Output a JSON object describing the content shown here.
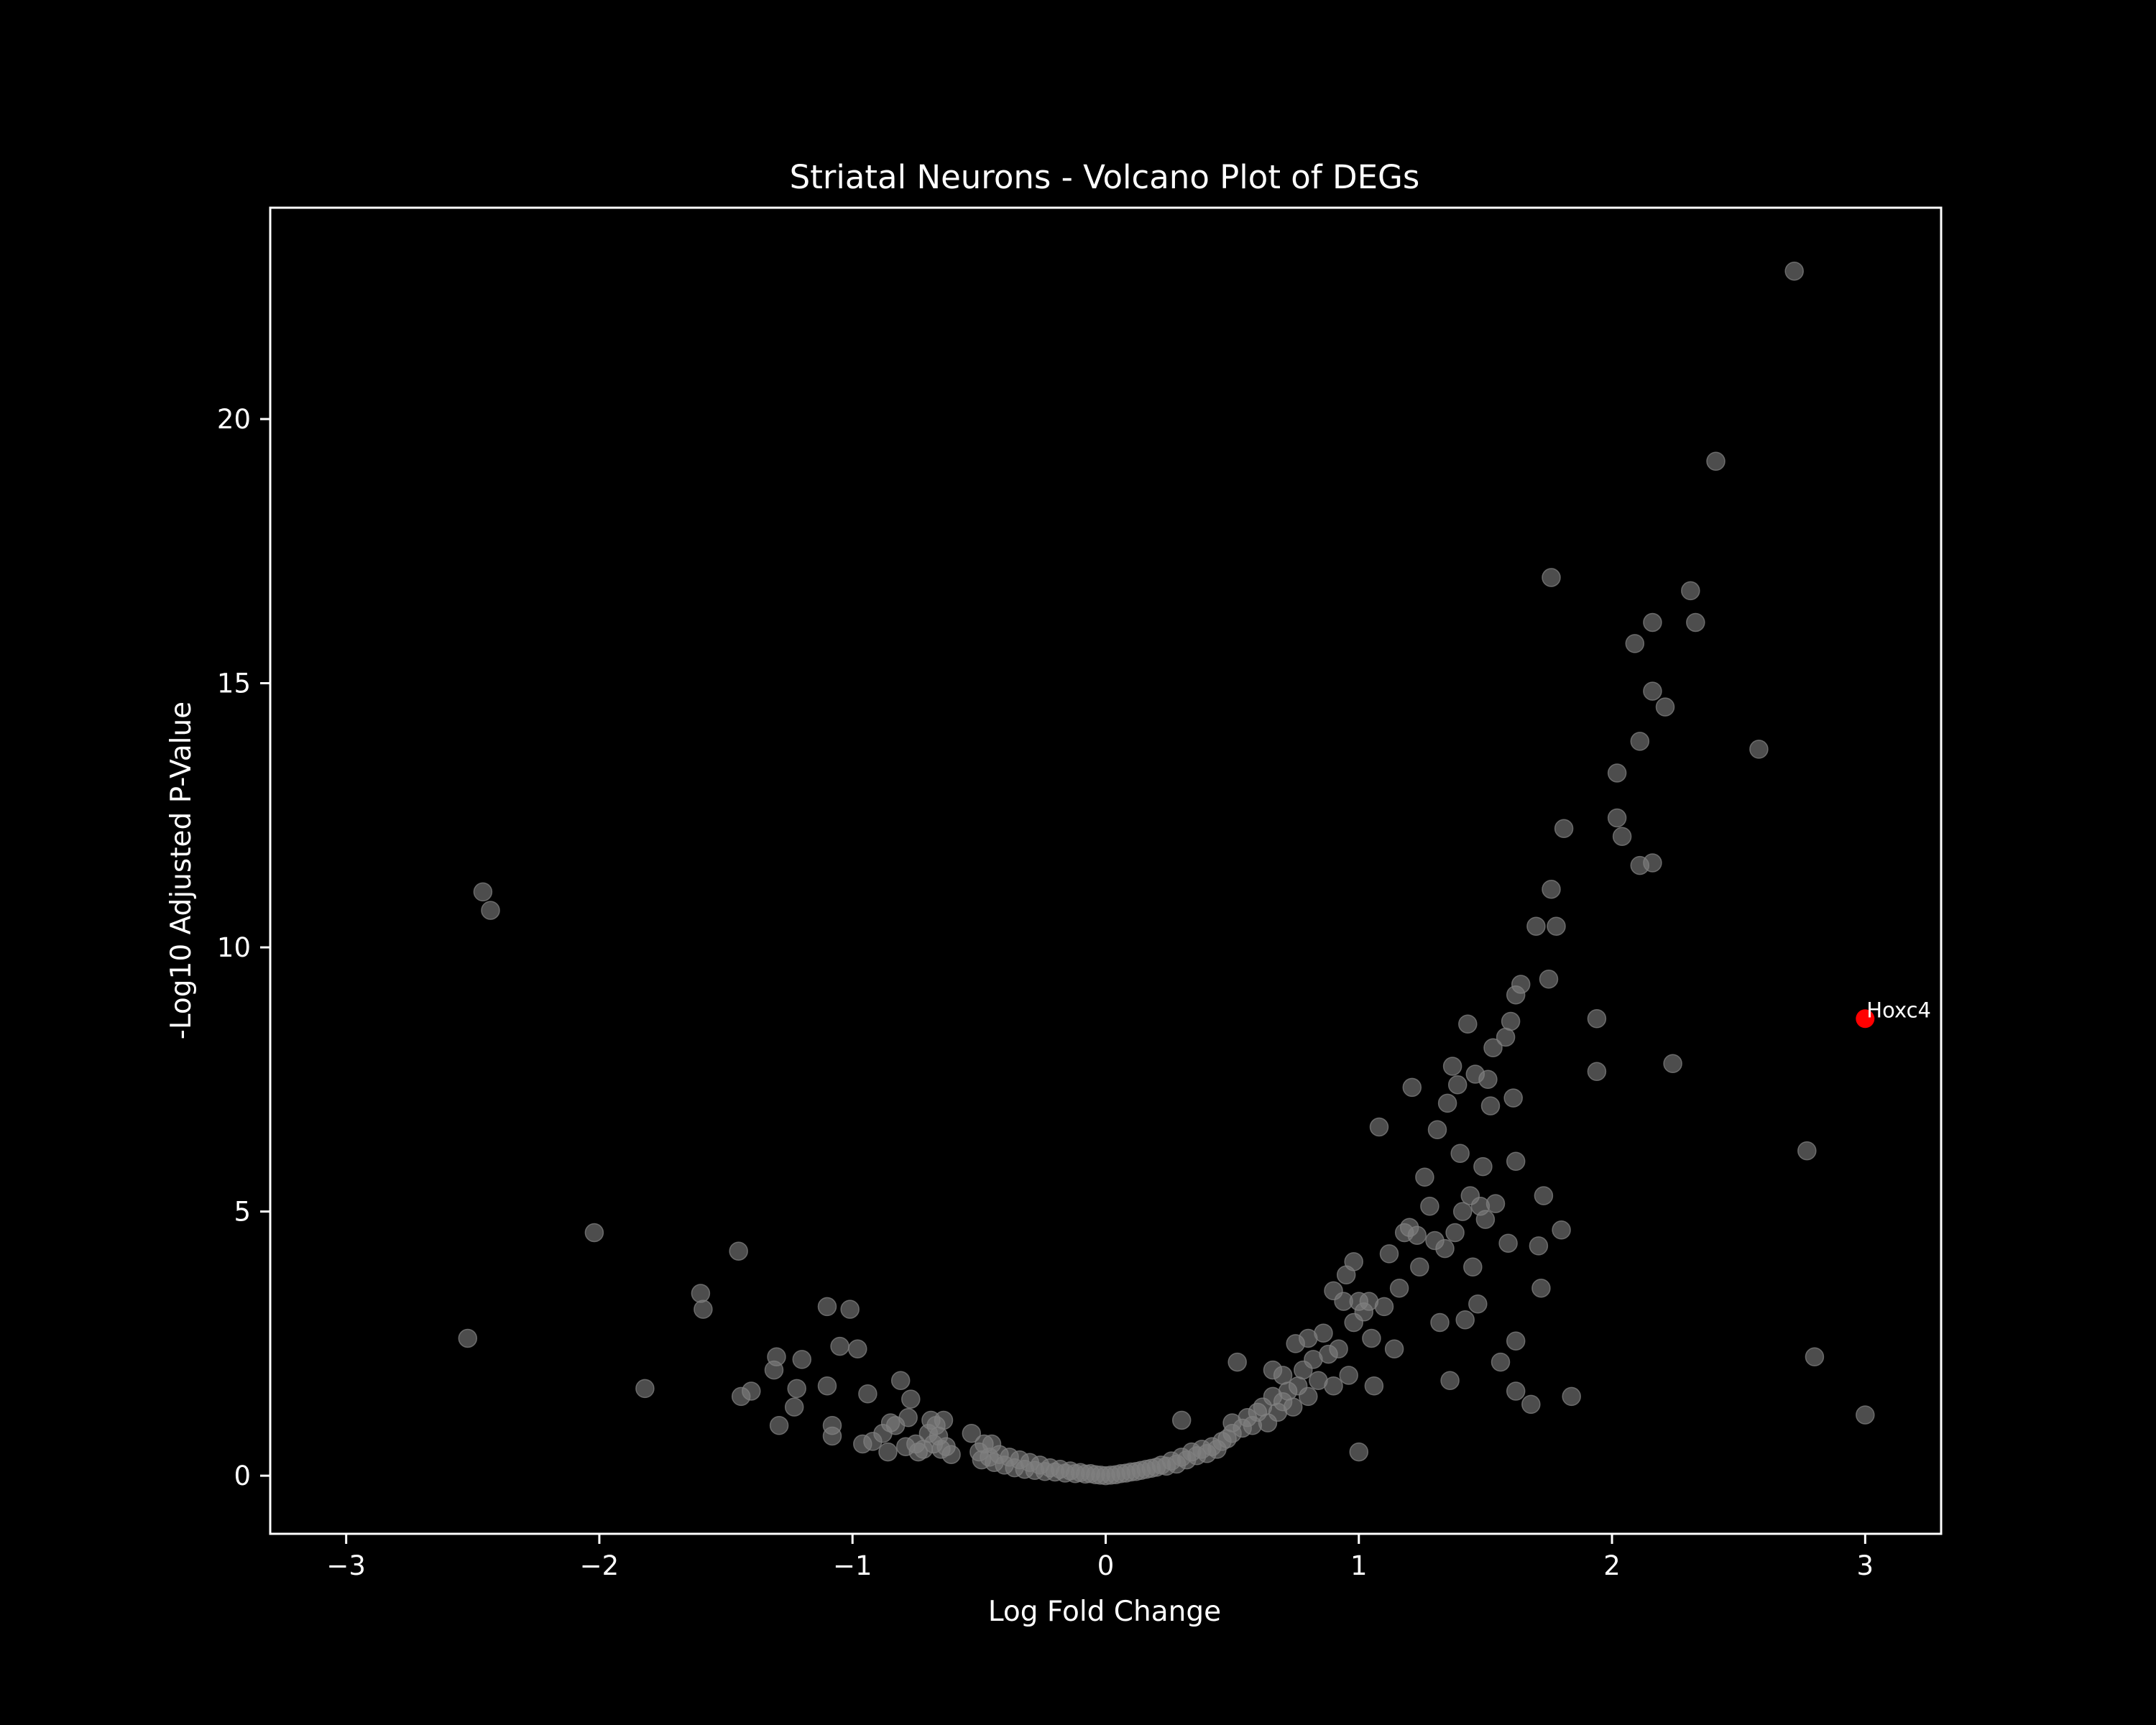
{
  "chart_data": {
    "type": "scatter",
    "title": "Striatal Neurons - Volcano Plot of DEGs",
    "xlabel": "Log Fold Change",
    "ylabel": "-Log10 Adjusted P-Value",
    "xlim": [
      -3.3,
      3.3
    ],
    "ylim": [
      -1.1,
      24.0
    ],
    "xticks": [
      -3,
      -2,
      -1,
      0,
      1,
      2,
      3
    ],
    "xtick_labels": [
      "−3",
      "−2",
      "−1",
      "0",
      "1",
      "2",
      "3"
    ],
    "yticks": [
      0,
      5,
      10,
      15,
      20
    ],
    "ytick_labels": [
      "0",
      "5",
      "10",
      "15",
      "20"
    ],
    "grid": false,
    "colors": {
      "background": "#000000",
      "points": "#808080",
      "highlight": "#ff0000",
      "axes": "#ffffff"
    },
    "series": [
      {
        "points": [
          [
            -2.52,
            2.6
          ],
          [
            -2.46,
            11.05
          ],
          [
            -2.43,
            10.7
          ],
          [
            -2.02,
            4.6
          ],
          [
            -1.82,
            1.65
          ],
          [
            -1.6,
            3.45
          ],
          [
            -1.59,
            3.15
          ],
          [
            -1.45,
            4.25
          ],
          [
            -1.44,
            1.5
          ],
          [
            -1.4,
            1.6
          ],
          [
            -1.31,
            2.0
          ],
          [
            -1.3,
            2.25
          ],
          [
            -1.29,
            0.95
          ],
          [
            -1.23,
            1.3
          ],
          [
            -1.22,
            1.65
          ],
          [
            -1.2,
            2.2
          ],
          [
            -1.1,
            3.2
          ],
          [
            -1.1,
            1.7
          ],
          [
            -1.08,
            0.95
          ],
          [
            -1.08,
            0.75
          ],
          [
            -1.05,
            2.45
          ],
          [
            -1.01,
            3.15
          ],
          [
            -0.98,
            2.4
          ],
          [
            -0.96,
            0.6
          ],
          [
            -0.94,
            1.55
          ],
          [
            -0.92,
            0.65
          ],
          [
            -0.88,
            0.8
          ],
          [
            -0.86,
            0.45
          ],
          [
            -0.85,
            1.0
          ],
          [
            -0.83,
            0.95
          ],
          [
            -0.81,
            1.8
          ],
          [
            -0.79,
            0.55
          ],
          [
            -0.78,
            1.1
          ],
          [
            -0.77,
            1.45
          ],
          [
            -0.75,
            0.6
          ],
          [
            -0.74,
            0.45
          ],
          [
            -0.72,
            0.5
          ],
          [
            -0.7,
            0.8
          ],
          [
            -0.69,
            1.05
          ],
          [
            -0.68,
            0.6
          ],
          [
            -0.67,
            0.95
          ],
          [
            -0.66,
            0.75
          ],
          [
            -0.65,
            0.5
          ],
          [
            -0.64,
            1.05
          ],
          [
            -0.63,
            0.55
          ],
          [
            -0.61,
            0.4
          ],
          [
            -0.53,
            0.8
          ],
          [
            -0.5,
            0.45
          ],
          [
            -0.49,
            0.3
          ],
          [
            -0.48,
            0.6
          ],
          [
            -0.46,
            0.35
          ],
          [
            -0.45,
            0.6
          ],
          [
            -0.44,
            0.25
          ],
          [
            -0.42,
            0.4
          ],
          [
            -0.4,
            0.2
          ],
          [
            -0.38,
            0.35
          ],
          [
            -0.36,
            0.15
          ],
          [
            -0.34,
            0.3
          ],
          [
            -0.32,
            0.12
          ],
          [
            -0.3,
            0.25
          ],
          [
            -0.28,
            0.1
          ],
          [
            -0.26,
            0.2
          ],
          [
            -0.24,
            0.08
          ],
          [
            -0.22,
            0.15
          ],
          [
            -0.2,
            0.07
          ],
          [
            -0.18,
            0.12
          ],
          [
            -0.16,
            0.05
          ],
          [
            -0.14,
            0.09
          ],
          [
            -0.12,
            0.04
          ],
          [
            -0.1,
            0.06
          ],
          [
            -0.08,
            0.03
          ],
          [
            -0.06,
            0.04
          ],
          [
            -0.04,
            0.02
          ],
          [
            -0.02,
            0.01
          ],
          [
            0.0,
            0.0
          ],
          [
            0.02,
            0.01
          ],
          [
            0.04,
            0.02
          ],
          [
            0.06,
            0.04
          ],
          [
            0.08,
            0.05
          ],
          [
            0.1,
            0.07
          ],
          [
            0.12,
            0.08
          ],
          [
            0.14,
            0.1
          ],
          [
            0.16,
            0.12
          ],
          [
            0.18,
            0.14
          ],
          [
            0.2,
            0.16
          ],
          [
            0.22,
            0.2
          ],
          [
            0.24,
            0.18
          ],
          [
            0.26,
            0.28
          ],
          [
            0.28,
            0.22
          ],
          [
            0.3,
            0.35
          ],
          [
            0.3,
            1.05
          ],
          [
            0.32,
            0.3
          ],
          [
            0.34,
            0.45
          ],
          [
            0.36,
            0.38
          ],
          [
            0.38,
            0.5
          ],
          [
            0.4,
            0.42
          ],
          [
            0.42,
            0.55
          ],
          [
            0.44,
            0.5
          ],
          [
            0.46,
            0.65
          ],
          [
            0.48,
            0.7
          ],
          [
            0.5,
            0.8
          ],
          [
            0.5,
            1.0
          ],
          [
            0.52,
            2.15
          ],
          [
            0.54,
            0.9
          ],
          [
            0.56,
            1.1
          ],
          [
            0.58,
            0.95
          ],
          [
            0.6,
            1.2
          ],
          [
            0.62,
            1.3
          ],
          [
            0.64,
            1.0
          ],
          [
            0.66,
            1.5
          ],
          [
            0.66,
            2.0
          ],
          [
            0.68,
            1.2
          ],
          [
            0.7,
            1.4
          ],
          [
            0.7,
            1.9
          ],
          [
            0.72,
            1.6
          ],
          [
            0.74,
            1.3
          ],
          [
            0.75,
            2.5
          ],
          [
            0.76,
            1.7
          ],
          [
            0.78,
            2.0
          ],
          [
            0.8,
            2.6
          ],
          [
            0.8,
            1.5
          ],
          [
            0.82,
            2.2
          ],
          [
            0.84,
            1.8
          ],
          [
            0.86,
            2.7
          ],
          [
            0.88,
            2.3
          ],
          [
            0.9,
            3.5
          ],
          [
            0.9,
            1.7
          ],
          [
            0.92,
            2.4
          ],
          [
            0.94,
            3.3
          ],
          [
            0.95,
            3.8
          ],
          [
            0.96,
            1.9
          ],
          [
            0.98,
            4.05
          ],
          [
            0.98,
            2.9
          ],
          [
            1.0,
            3.3
          ],
          [
            1.0,
            0.45
          ],
          [
            1.02,
            3.1
          ],
          [
            1.04,
            3.3
          ],
          [
            1.05,
            2.6
          ],
          [
            1.06,
            1.7
          ],
          [
            1.08,
            6.6
          ],
          [
            1.1,
            3.2
          ],
          [
            1.12,
            4.2
          ],
          [
            1.14,
            2.4
          ],
          [
            1.16,
            3.55
          ],
          [
            1.18,
            4.6
          ],
          [
            1.2,
            4.7
          ],
          [
            1.21,
            7.35
          ],
          [
            1.23,
            4.55
          ],
          [
            1.24,
            3.95
          ],
          [
            1.26,
            5.65
          ],
          [
            1.28,
            5.1
          ],
          [
            1.3,
            4.45
          ],
          [
            1.31,
            6.55
          ],
          [
            1.32,
            2.9
          ],
          [
            1.34,
            4.3
          ],
          [
            1.35,
            7.05
          ],
          [
            1.36,
            1.8
          ],
          [
            1.37,
            7.75
          ],
          [
            1.38,
            4.6
          ],
          [
            1.39,
            7.4
          ],
          [
            1.4,
            6.1
          ],
          [
            1.41,
            5.0
          ],
          [
            1.42,
            2.95
          ],
          [
            1.43,
            8.55
          ],
          [
            1.44,
            5.3
          ],
          [
            1.45,
            3.95
          ],
          [
            1.46,
            7.6
          ],
          [
            1.47,
            3.25
          ],
          [
            1.48,
            5.1
          ],
          [
            1.49,
            5.85
          ],
          [
            1.5,
            4.85
          ],
          [
            1.51,
            7.5
          ],
          [
            1.52,
            7.0
          ],
          [
            1.53,
            8.1
          ],
          [
            1.54,
            5.15
          ],
          [
            1.56,
            2.15
          ],
          [
            1.58,
            8.3
          ],
          [
            1.59,
            4.4
          ],
          [
            1.6,
            8.6
          ],
          [
            1.61,
            7.15
          ],
          [
            1.62,
            9.1
          ],
          [
            1.62,
            5.95
          ],
          [
            1.62,
            2.55
          ],
          [
            1.62,
            1.6
          ],
          [
            1.64,
            9.3
          ],
          [
            1.68,
            1.35
          ],
          [
            1.7,
            10.4
          ],
          [
            1.71,
            4.35
          ],
          [
            1.72,
            3.55
          ],
          [
            1.73,
            5.3
          ],
          [
            1.75,
            9.4
          ],
          [
            1.76,
            17.0
          ],
          [
            1.76,
            11.1
          ],
          [
            1.78,
            10.4
          ],
          [
            1.8,
            4.65
          ],
          [
            1.81,
            12.25
          ],
          [
            1.84,
            1.5
          ],
          [
            1.94,
            8.65
          ],
          [
            1.94,
            7.65
          ],
          [
            2.02,
            13.3
          ],
          [
            2.02,
            12.45
          ],
          [
            2.04,
            12.1
          ],
          [
            2.09,
            15.75
          ],
          [
            2.11,
            13.9
          ],
          [
            2.11,
            11.55
          ],
          [
            2.16,
            11.6
          ],
          [
            2.16,
            16.15
          ],
          [
            2.16,
            14.85
          ],
          [
            2.21,
            14.55
          ],
          [
            2.24,
            7.8
          ],
          [
            2.31,
            16.75
          ],
          [
            2.33,
            16.15
          ],
          [
            2.41,
            19.2
          ],
          [
            2.58,
            13.75
          ],
          [
            2.72,
            22.8
          ],
          [
            2.77,
            6.15
          ],
          [
            2.8,
            2.25
          ],
          [
            3.0,
            1.15
          ]
        ]
      }
    ],
    "highlights": [
      {
        "label": "Hoxc4",
        "x": 3.0,
        "y": 8.65
      }
    ]
  }
}
